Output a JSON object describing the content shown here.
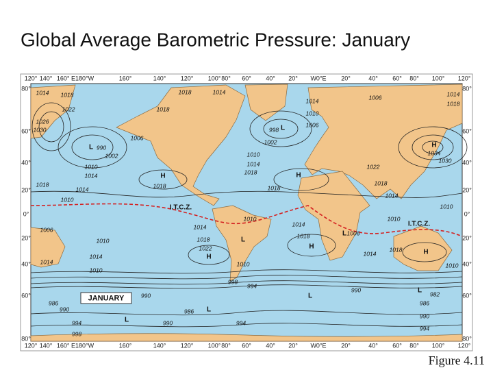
{
  "title": "Global Average Barometric Pressure: January",
  "caption": "Figure  4.11",
  "map": {
    "legend": "JANUARY",
    "longitude_labels": [
      "120°",
      "140°",
      "160° E180°W",
      "160°",
      "140°",
      "120°",
      "100°",
      "80°",
      "60°",
      "40°",
      "20°",
      "W0°E",
      "20°",
      "40°",
      "60°",
      "80°",
      "100°",
      "120°"
    ],
    "latitude_labels": [
      "80°",
      "60°",
      "40°",
      "20°",
      "0°",
      "20°",
      "40°",
      "60°",
      "80°"
    ],
    "isobar_labels": [
      "1014",
      "1018",
      "1018",
      "1014",
      "1022",
      "1018",
      "1026",
      "1030",
      "998",
      "1014",
      "1010",
      "1006",
      "1006",
      "1014",
      "1018",
      "1006",
      "990",
      "1002",
      "1002",
      "1010",
      "1014",
      "1018",
      "1034",
      "1030",
      "1022",
      "1010",
      "1014",
      "1018",
      "1018",
      "1014",
      "1018",
      "1018",
      "1014",
      "1010",
      "1010",
      "1010",
      "1010",
      "1006",
      "1014",
      "1014",
      "1006",
      "1018",
      "1018",
      "1010",
      "1022",
      "1018",
      "1014",
      "1014",
      "1014",
      "1010",
      "1010",
      "1010",
      "998",
      "994",
      "990",
      "982",
      "990",
      "986",
      "986",
      "990",
      "986",
      "990",
      "994",
      "990",
      "994",
      "994",
      "998"
    ],
    "pressure_centers": [
      "L",
      "L",
      "H",
      "H",
      "H",
      "L",
      "H",
      "H",
      "H",
      "L",
      "L",
      "L",
      "L",
      "L"
    ],
    "itcz_labels": [
      "I.T.C.Z.",
      "I.T.C.Z."
    ]
  }
}
